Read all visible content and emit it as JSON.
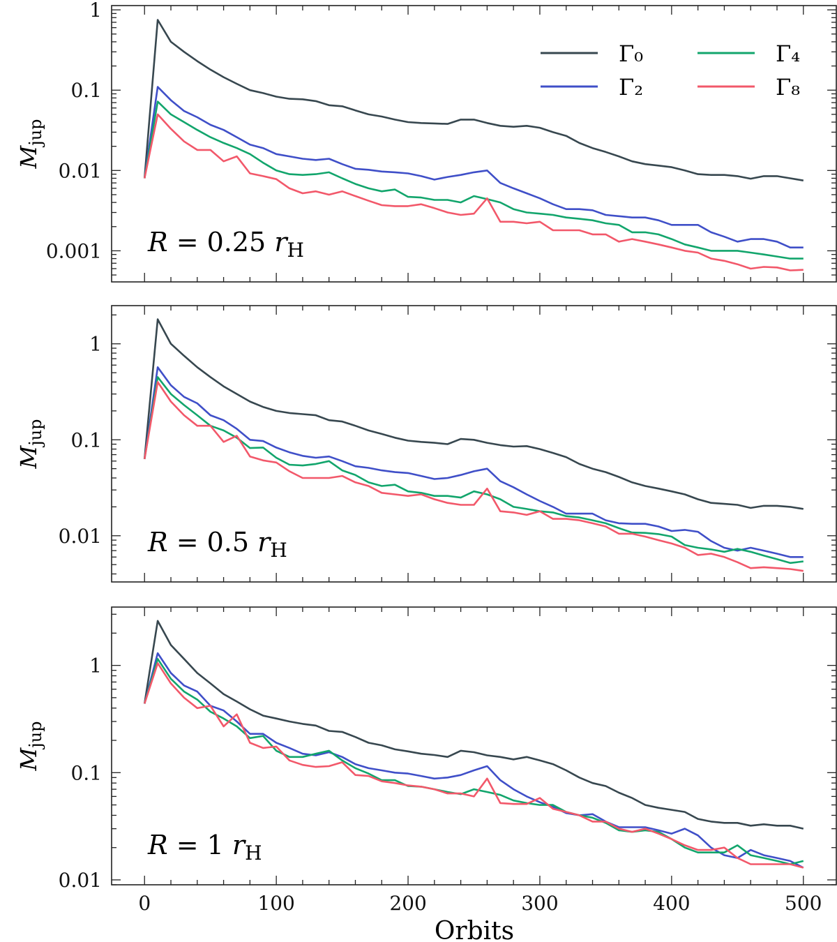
{
  "chart_data": {
    "type": "line",
    "shared_x_axis": {
      "label": "Orbits",
      "range": [
        -25,
        525
      ],
      "ticks": [
        0,
        100,
        200,
        300,
        400,
        500
      ]
    },
    "x": [
      0,
      10,
      20,
      30,
      40,
      50,
      60,
      70,
      80,
      90,
      100,
      110,
      120,
      130,
      140,
      150,
      160,
      170,
      180,
      190,
      200,
      210,
      220,
      230,
      240,
      250,
      260,
      270,
      280,
      290,
      300,
      310,
      320,
      330,
      340,
      350,
      360,
      370,
      380,
      390,
      400,
      410,
      420,
      430,
      440,
      450,
      460,
      470,
      480,
      490,
      500
    ],
    "legend": {
      "placement": "top-right of top panel",
      "entries": [
        "Γ₀",
        "Γ₂",
        "Γ₄",
        "Γ₈"
      ]
    },
    "colors": {
      "Γ₀": "#37474f",
      "Γ₂": "#3f4fc8",
      "Γ₄": "#12a56c",
      "Γ₈": "#f2586a"
    },
    "panels": [
      {
        "label": {
          "var": "R",
          "eq": " = 0.25 ",
          "unit": "r",
          "unit_sub": "H"
        },
        "ylabel": {
          "symbol": "M",
          "sub": "jup"
        },
        "yscale": "log",
        "ylim": [
          0.00041,
          1.13
        ],
        "yticks": [
          {
            "v": 1,
            "label": "1"
          },
          {
            "v": 0.1,
            "label": "0.1"
          },
          {
            "v": 0.01,
            "label": "0.01"
          },
          {
            "v": 0.001,
            "label": "0.001"
          }
        ],
        "series": [
          {
            "name": "Γ₀",
            "values": [
              0.008,
              0.75,
              0.4,
              0.3,
              0.23,
              0.18,
              0.145,
              0.12,
              0.1,
              0.092,
              0.083,
              0.078,
              0.077,
              0.073,
              0.065,
              0.063,
              0.056,
              0.05,
              0.047,
              0.043,
              0.04,
              0.039,
              0.0385,
              0.038,
              0.043,
              0.043,
              0.039,
              0.036,
              0.035,
              0.036,
              0.034,
              0.03,
              0.027,
              0.022,
              0.019,
              0.017,
              0.015,
              0.013,
              0.012,
              0.0115,
              0.011,
              0.01,
              0.009,
              0.0088,
              0.0088,
              0.0085,
              0.0079,
              0.0085,
              0.0085,
              0.008,
              0.0075
            ]
          },
          {
            "name": "Γ₂",
            "values": [
              0.008,
              0.11,
              0.075,
              0.055,
              0.046,
              0.037,
              0.032,
              0.026,
              0.021,
              0.019,
              0.016,
              0.015,
              0.014,
              0.0135,
              0.014,
              0.012,
              0.0105,
              0.0102,
              0.0097,
              0.0095,
              0.0092,
              0.0085,
              0.0077,
              0.0083,
              0.0088,
              0.0095,
              0.01,
              0.007,
              0.006,
              0.0052,
              0.0045,
              0.0038,
              0.0033,
              0.0033,
              0.0032,
              0.0028,
              0.0027,
              0.0026,
              0.0026,
              0.0024,
              0.0021,
              0.0021,
              0.0021,
              0.0017,
              0.0015,
              0.0013,
              0.0014,
              0.0014,
              0.0013,
              0.0011,
              0.0011
            ]
          },
          {
            "name": "Γ₄",
            "values": [
              0.008,
              0.072,
              0.05,
              0.04,
              0.032,
              0.026,
              0.022,
              0.019,
              0.016,
              0.0125,
              0.01,
              0.009,
              0.0088,
              0.009,
              0.0095,
              0.008,
              0.0068,
              0.006,
              0.0055,
              0.0058,
              0.0047,
              0.0046,
              0.0043,
              0.0043,
              0.004,
              0.0048,
              0.0044,
              0.004,
              0.0033,
              0.003,
              0.0029,
              0.0028,
              0.0026,
              0.0025,
              0.0024,
              0.0022,
              0.0021,
              0.0017,
              0.0017,
              0.0016,
              0.0014,
              0.0012,
              0.0011,
              0.001,
              0.001,
              0.001,
              0.00095,
              0.0009,
              0.00085,
              0.0008,
              0.0008
            ]
          },
          {
            "name": "Γ₈",
            "values": [
              0.008,
              0.05,
              0.033,
              0.023,
              0.018,
              0.018,
              0.013,
              0.015,
              0.0092,
              0.0085,
              0.0078,
              0.006,
              0.0052,
              0.0055,
              0.005,
              0.0055,
              0.0048,
              0.0042,
              0.0037,
              0.0036,
              0.0036,
              0.0038,
              0.0034,
              0.003,
              0.0028,
              0.0029,
              0.0045,
              0.0023,
              0.0023,
              0.0022,
              0.0023,
              0.0018,
              0.0018,
              0.0018,
              0.0016,
              0.0016,
              0.0013,
              0.0014,
              0.0013,
              0.0012,
              0.0011,
              0.001,
              0.00095,
              0.0008,
              0.00075,
              0.00068,
              0.0006,
              0.00063,
              0.00062,
              0.00057,
              0.00058
            ]
          }
        ]
      },
      {
        "label": {
          "var": "R",
          "eq": " = 0.5 ",
          "unit": "r",
          "unit_sub": "H"
        },
        "ylabel": {
          "symbol": "M",
          "sub": "jup"
        },
        "yscale": "log",
        "ylim": [
          0.0033,
          2.5
        ],
        "yticks": [
          {
            "v": 1,
            "label": "1"
          },
          {
            "v": 0.1,
            "label": "0.1"
          },
          {
            "v": 0.01,
            "label": "0.01"
          }
        ],
        "series": [
          {
            "name": "Γ₀",
            "values": [
              0.063,
              1.8,
              1.0,
              0.75,
              0.57,
              0.45,
              0.36,
              0.3,
              0.25,
              0.22,
              0.2,
              0.19,
              0.185,
              0.18,
              0.16,
              0.155,
              0.14,
              0.125,
              0.115,
              0.105,
              0.098,
              0.095,
              0.093,
              0.09,
              0.102,
              0.1,
              0.093,
              0.088,
              0.085,
              0.086,
              0.08,
              0.073,
              0.066,
              0.056,
              0.05,
              0.046,
              0.041,
              0.036,
              0.033,
              0.031,
              0.029,
              0.027,
              0.024,
              0.022,
              0.0215,
              0.021,
              0.0195,
              0.0205,
              0.0205,
              0.02,
              0.019
            ]
          },
          {
            "name": "Γ₂",
            "values": [
              0.063,
              0.57,
              0.37,
              0.28,
              0.24,
              0.18,
              0.16,
              0.13,
              0.1,
              0.097,
              0.083,
              0.074,
              0.068,
              0.065,
              0.067,
              0.06,
              0.053,
              0.051,
              0.048,
              0.046,
              0.045,
              0.042,
              0.039,
              0.04,
              0.043,
              0.047,
              0.05,
              0.037,
              0.032,
              0.027,
              0.023,
              0.02,
              0.017,
              0.017,
              0.017,
              0.0145,
              0.0135,
              0.0133,
              0.0133,
              0.0125,
              0.0112,
              0.0115,
              0.011,
              0.0088,
              0.0075,
              0.007,
              0.0075,
              0.007,
              0.0065,
              0.006,
              0.006
            ]
          },
          {
            "name": "Γ₄",
            "values": [
              0.063,
              0.45,
              0.3,
              0.23,
              0.18,
              0.14,
              0.125,
              0.105,
              0.082,
              0.083,
              0.065,
              0.055,
              0.054,
              0.056,
              0.06,
              0.048,
              0.043,
              0.036,
              0.033,
              0.034,
              0.029,
              0.028,
              0.026,
              0.026,
              0.025,
              0.029,
              0.027,
              0.024,
              0.02,
              0.019,
              0.018,
              0.0175,
              0.016,
              0.0155,
              0.0145,
              0.0135,
              0.012,
              0.0108,
              0.0107,
              0.0104,
              0.0098,
              0.008,
              0.0075,
              0.0072,
              0.0068,
              0.0073,
              0.0068,
              0.0062,
              0.0057,
              0.0052,
              0.0054
            ]
          },
          {
            "name": "Γ₈",
            "values": [
              0.063,
              0.4,
              0.25,
              0.18,
              0.14,
              0.14,
              0.095,
              0.11,
              0.067,
              0.061,
              0.058,
              0.047,
              0.04,
              0.04,
              0.04,
              0.042,
              0.036,
              0.033,
              0.028,
              0.027,
              0.026,
              0.027,
              0.024,
              0.022,
              0.021,
              0.021,
              0.031,
              0.018,
              0.0175,
              0.0165,
              0.018,
              0.015,
              0.015,
              0.0145,
              0.0135,
              0.0125,
              0.0105,
              0.0105,
              0.0098,
              0.009,
              0.0083,
              0.0075,
              0.0063,
              0.0065,
              0.006,
              0.0053,
              0.0046,
              0.0047,
              0.0046,
              0.0045,
              0.0043
            ]
          }
        ]
      },
      {
        "label": {
          "var": "R",
          "eq": " = 1 ",
          "unit": "r",
          "unit_sub": "H"
        },
        "ylabel": {
          "symbol": "M",
          "sub": "jup"
        },
        "yscale": "log",
        "ylim": [
          0.009,
          3.5
        ],
        "yticks": [
          {
            "v": 1,
            "label": "1"
          },
          {
            "v": 0.1,
            "label": "0.1"
          },
          {
            "v": 0.01,
            "label": "0.01"
          }
        ],
        "series": [
          {
            "name": "Γ₀",
            "values": [
              0.44,
              2.6,
              1.55,
              1.15,
              0.85,
              0.68,
              0.54,
              0.46,
              0.39,
              0.34,
              0.32,
              0.3,
              0.285,
              0.275,
              0.245,
              0.24,
              0.215,
              0.19,
              0.18,
              0.165,
              0.158,
              0.15,
              0.146,
              0.14,
              0.16,
              0.155,
              0.145,
              0.14,
              0.133,
              0.14,
              0.13,
              0.12,
              0.105,
              0.09,
              0.08,
              0.075,
              0.065,
              0.058,
              0.05,
              0.047,
              0.045,
              0.043,
              0.037,
              0.035,
              0.034,
              0.034,
              0.032,
              0.033,
              0.032,
              0.032,
              0.03
            ]
          },
          {
            "name": "Γ₂",
            "values": [
              0.44,
              1.3,
              0.85,
              0.65,
              0.57,
              0.42,
              0.38,
              0.3,
              0.23,
              0.23,
              0.19,
              0.17,
              0.15,
              0.145,
              0.155,
              0.14,
              0.12,
              0.11,
              0.105,
              0.1,
              0.098,
              0.093,
              0.088,
              0.09,
              0.095,
              0.105,
              0.115,
              0.085,
              0.07,
              0.06,
              0.053,
              0.048,
              0.042,
              0.04,
              0.041,
              0.035,
              0.031,
              0.031,
              0.031,
              0.029,
              0.027,
              0.03,
              0.026,
              0.02,
              0.017,
              0.016,
              0.019,
              0.017,
              0.016,
              0.015,
              0.013
            ]
          },
          {
            "name": "Γ₄",
            "values": [
              0.44,
              1.15,
              0.75,
              0.57,
              0.48,
              0.37,
              0.32,
              0.27,
              0.21,
              0.22,
              0.16,
              0.14,
              0.14,
              0.15,
              0.16,
              0.13,
              0.11,
              0.098,
              0.085,
              0.085,
              0.075,
              0.074,
              0.07,
              0.066,
              0.063,
              0.07,
              0.066,
              0.062,
              0.055,
              0.052,
              0.05,
              0.05,
              0.043,
              0.04,
              0.038,
              0.034,
              0.029,
              0.028,
              0.029,
              0.028,
              0.024,
              0.02,
              0.018,
              0.018,
              0.018,
              0.021,
              0.017,
              0.016,
              0.015,
              0.014,
              0.015
            ]
          },
          {
            "name": "Γ₈",
            "values": [
              0.44,
              1.05,
              0.68,
              0.5,
              0.4,
              0.42,
              0.27,
              0.35,
              0.19,
              0.17,
              0.175,
              0.13,
              0.118,
              0.113,
              0.115,
              0.125,
              0.095,
              0.093,
              0.083,
              0.08,
              0.076,
              0.074,
              0.07,
              0.064,
              0.064,
              0.06,
              0.088,
              0.052,
              0.051,
              0.051,
              0.058,
              0.046,
              0.043,
              0.04,
              0.035,
              0.035,
              0.03,
              0.028,
              0.03,
              0.027,
              0.024,
              0.021,
              0.019,
              0.019,
              0.02,
              0.016,
              0.014,
              0.014,
              0.014,
              0.014,
              0.013
            ]
          }
        ]
      }
    ]
  }
}
